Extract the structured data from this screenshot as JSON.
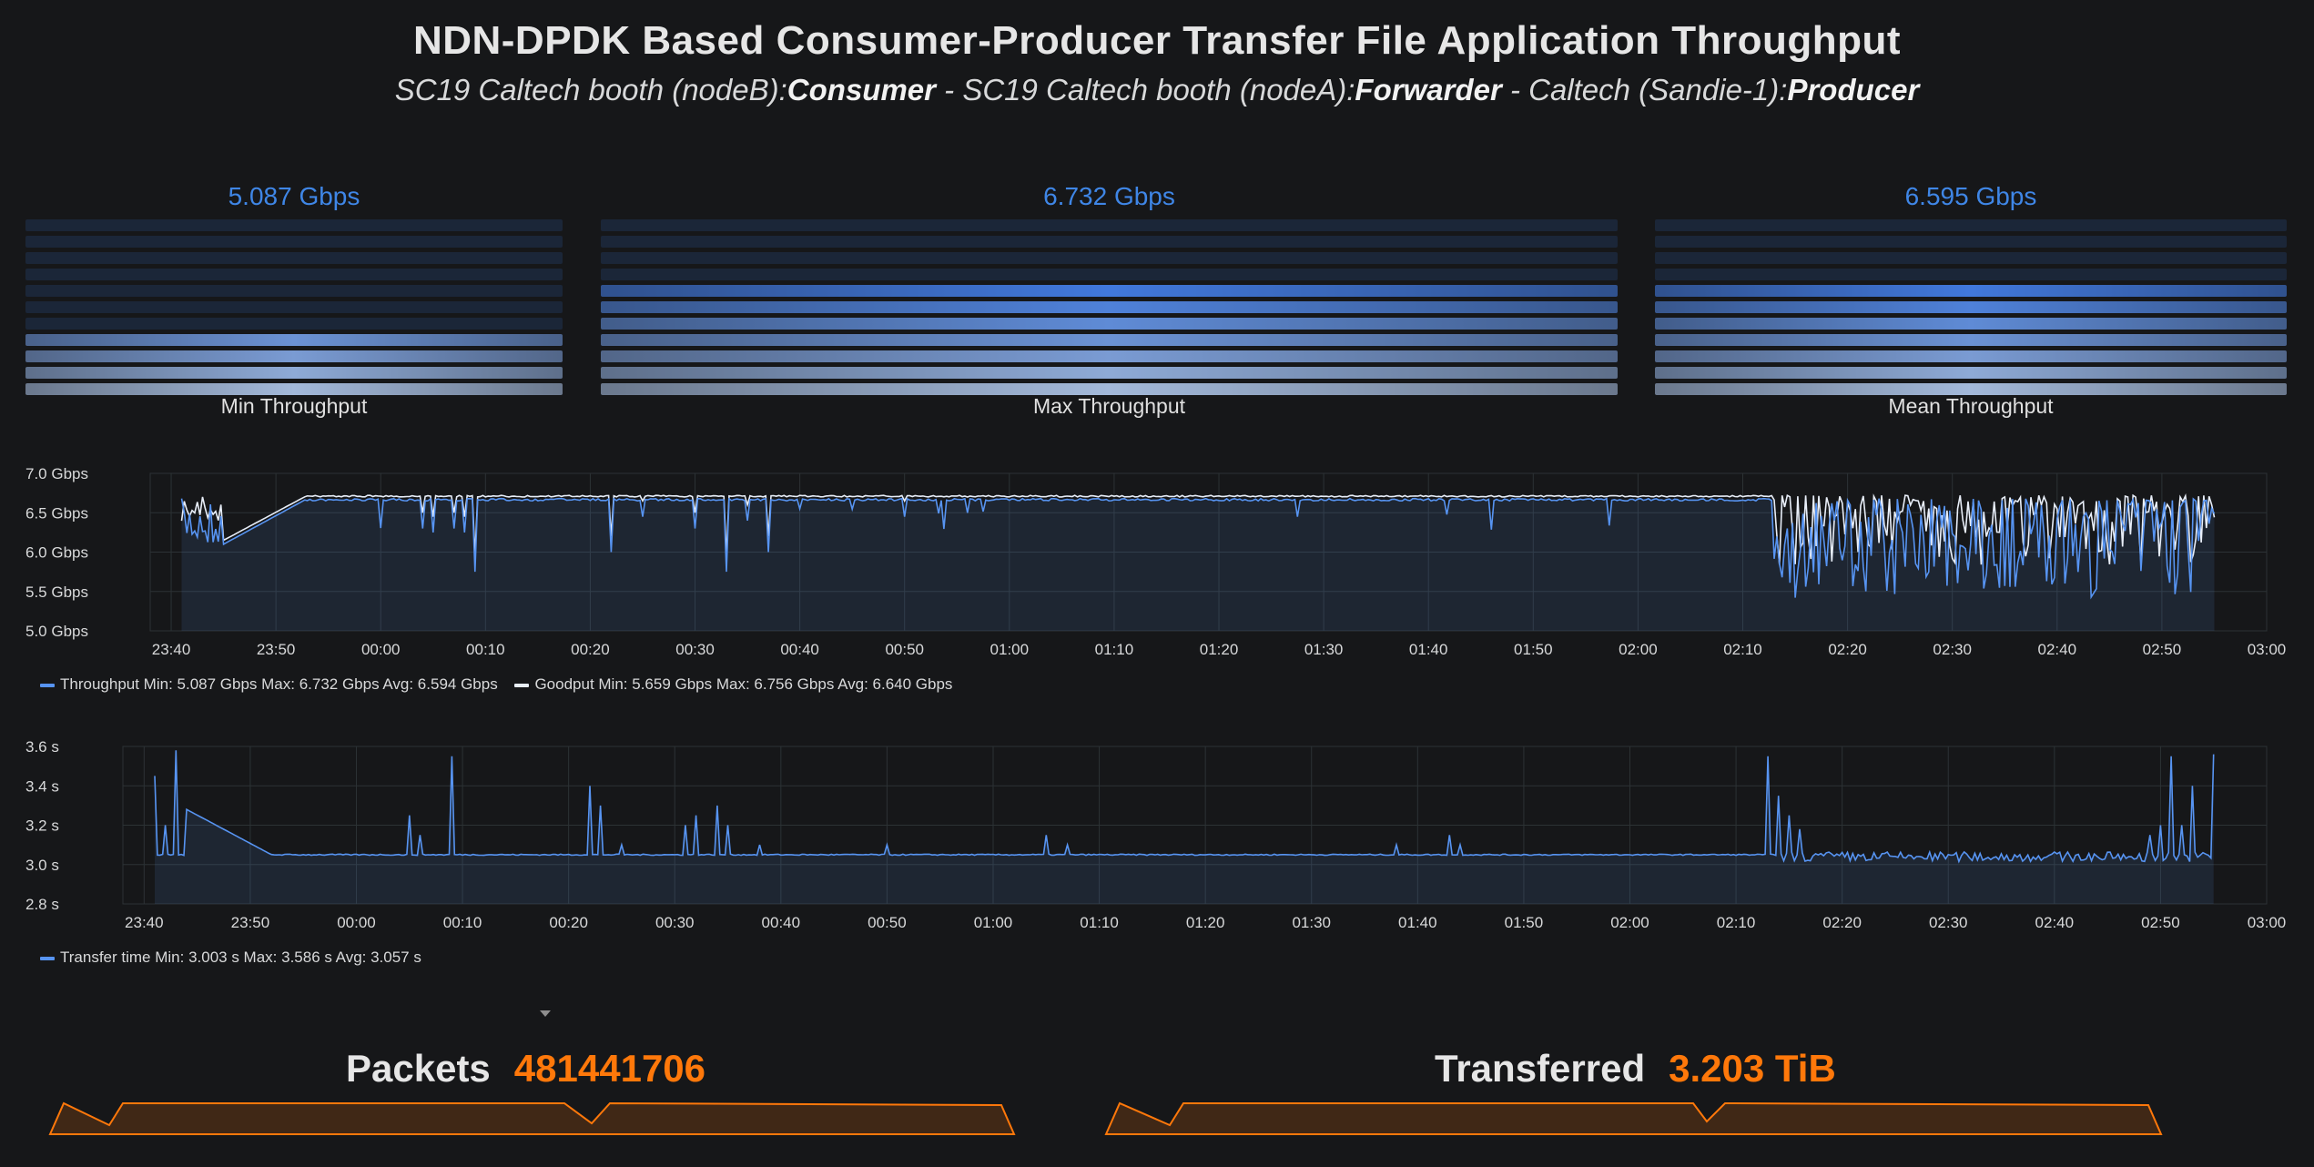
{
  "header": {
    "title": "NDN-DPDK Based Consumer-Producer Transfer File Application Throughput",
    "subtitle": {
      "p1": "SC19 Caltech booth (nodeB):",
      "role1": "Consumer",
      "p2": " - SC19 Caltech booth (nodeA):",
      "role2": "Forwarder",
      "p3": " - Caltech (Sandie-1):",
      "role3": "Producer"
    }
  },
  "gauges": [
    {
      "label": "Min Throughput",
      "value": "5.087 Gbps",
      "fill": 0.35
    },
    {
      "label": "Max Throughput",
      "value": "6.732 Gbps",
      "fill": 0.6
    },
    {
      "label": "Mean Throughput",
      "value": "6.595 Gbps",
      "fill": 0.6
    }
  ],
  "colors": {
    "accent": "#3f86e6",
    "series_blue": "#5794f2",
    "series_white": "#c7d8ef",
    "stat_orange": "#ff780a",
    "grid": "#2c3235",
    "background": "#161719"
  },
  "throughput_legend": {
    "throughput": "Throughput  Min: 5.087 Gbps  Max: 6.732 Gbps  Avg: 6.594 Gbps",
    "goodput": "Goodput  Min: 5.659 Gbps  Max: 6.756 Gbps  Avg: 6.640 Gbps"
  },
  "transfer_legend": {
    "transfer": "Transfer time  Min: 3.003 s  Max: 3.586 s  Avg: 3.057 s"
  },
  "stats": {
    "packets_label": "Packets",
    "packets_value": "481441706",
    "transferred_label": "Transferred",
    "transferred_value": "3.203 TiB"
  },
  "chart_data": [
    {
      "type": "line",
      "x_ticks": [
        "23:40",
        "23:50",
        "00:00",
        "00:10",
        "00:20",
        "00:30",
        "00:40",
        "00:50",
        "01:00",
        "01:10",
        "01:20",
        "01:30",
        "01:40",
        "01:50",
        "02:00",
        "02:10",
        "02:20",
        "02:30",
        "02:40",
        "02:50",
        "03:00"
      ],
      "y_ticks": [
        "5.0 Gbps",
        "5.5 Gbps",
        "6.0 Gbps",
        "6.5 Gbps",
        "7.0 Gbps"
      ],
      "ylim": [
        5.0,
        7.0
      ],
      "xlim": [
        "23:38",
        "03:00"
      ],
      "series": [
        {
          "name": "Throughput",
          "min": 5.087,
          "max": 6.732,
          "avg": 6.594,
          "base": 6.68,
          "dips": [
            [
              "23:41",
              5.9
            ],
            [
              "23:42",
              5.75
            ],
            [
              "23:43",
              5.65
            ],
            [
              "23:44",
              6.1
            ],
            [
              "23:45",
              6.2
            ],
            [
              "00:04",
              6.3
            ],
            [
              "00:05",
              6.25
            ],
            [
              "00:07",
              6.3
            ],
            [
              "00:08",
              6.25
            ],
            [
              "00:09",
              5.75
            ],
            [
              "00:22",
              6.0
            ],
            [
              "00:25",
              6.45
            ],
            [
              "00:30",
              6.3
            ],
            [
              "00:33",
              5.75
            ],
            [
              "00:35",
              6.4
            ],
            [
              "00:37",
              6.0
            ],
            [
              "00:40",
              6.55
            ],
            [
              "00:50",
              6.45
            ],
            [
              "00:56",
              6.5
            ],
            [
              "02:52",
              5.8
            ],
            [
              "02:53",
              5.4
            ]
          ]
        },
        {
          "name": "Goodput",
          "min": 5.659,
          "max": 6.756,
          "avg": 6.64,
          "base": 6.72
        }
      ]
    },
    {
      "type": "line",
      "x_ticks": [
        "23:40",
        "23:50",
        "00:00",
        "00:10",
        "00:20",
        "00:30",
        "00:40",
        "00:50",
        "01:00",
        "01:10",
        "01:20",
        "01:30",
        "01:40",
        "01:50",
        "02:00",
        "02:10",
        "02:20",
        "02:30",
        "02:40",
        "02:50",
        "03:00"
      ],
      "y_ticks": [
        "2.8 s",
        "3.0 s",
        "3.2 s",
        "3.4 s",
        "3.6 s"
      ],
      "ylim": [
        2.8,
        3.6
      ],
      "xlim": [
        "23:38",
        "03:00"
      ],
      "series": [
        {
          "name": "Transfer time",
          "min": 3.003,
          "max": 3.586,
          "avg": 3.057,
          "base": 3.05,
          "spikes": [
            [
              "23:41",
              3.45
            ],
            [
              "23:42",
              3.2
            ],
            [
              "23:43",
              3.58
            ],
            [
              "23:44",
              3.28
            ],
            [
              "00:05",
              3.25
            ],
            [
              "00:06",
              3.15
            ],
            [
              "00:09",
              3.55
            ],
            [
              "00:22",
              3.4
            ],
            [
              "00:23",
              3.3
            ],
            [
              "00:25",
              3.1
            ],
            [
              "00:31",
              3.2
            ],
            [
              "00:32",
              3.25
            ],
            [
              "00:34",
              3.3
            ],
            [
              "00:35",
              3.2
            ],
            [
              "00:38",
              3.1
            ],
            [
              "00:43",
              3.05
            ],
            [
              "00:50",
              3.1
            ],
            [
              "01:05",
              3.15
            ],
            [
              "01:07",
              3.1
            ],
            [
              "01:38",
              3.1
            ],
            [
              "01:43",
              3.15
            ],
            [
              "01:44",
              3.1
            ],
            [
              "02:13",
              3.55
            ],
            [
              "02:14",
              3.35
            ],
            [
              "02:15",
              3.25
            ],
            [
              "02:16",
              3.18
            ],
            [
              "02:49",
              3.15
            ],
            [
              "02:50",
              3.2
            ],
            [
              "02:51",
              3.55
            ],
            [
              "02:52",
              3.2
            ],
            [
              "02:53",
              3.4
            ],
            [
              "02:55",
              3.56
            ]
          ]
        }
      ]
    }
  ]
}
